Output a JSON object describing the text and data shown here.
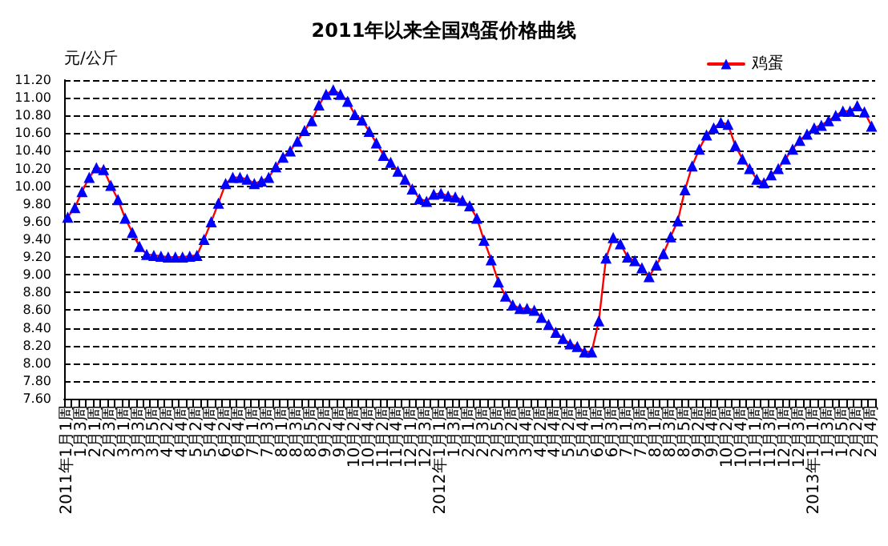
{
  "chart_data": {
    "type": "line",
    "title": "2011年以来全国鸡蛋价格曲线",
    "ylabel": "元/公斤",
    "categories": [
      "2011年1月1周",
      null,
      "1月3周",
      null,
      "2月1周",
      null,
      "2月3周",
      null,
      "3月1周",
      null,
      "3月3周",
      null,
      "3月5周",
      null,
      "4月2周",
      null,
      "4月4周",
      null,
      "5月2周",
      null,
      "5月4周",
      null,
      "6月2周",
      null,
      "6月4周",
      null,
      "7月1周",
      null,
      "7月3周",
      null,
      "8月1周",
      null,
      "8月3周",
      null,
      "8月5周",
      null,
      "9月2周",
      null,
      "9月4周",
      null,
      "10月2周",
      null,
      "10月4周",
      null,
      "11月2周",
      null,
      "11月4周",
      null,
      "12月1周",
      null,
      "12月3周",
      null,
      "2012年1月1周",
      null,
      "1月3周",
      null,
      "2月1周",
      null,
      "2月3周",
      null,
      "2月5周",
      null,
      "3月2周",
      null,
      "3月4周",
      null,
      "4月2周",
      null,
      "4月4周",
      null,
      "5月2周",
      null,
      "5月4周",
      null,
      "6月1周",
      null,
      "6月3周",
      null,
      "7月1周",
      null,
      "7月3周",
      null,
      "8月1周",
      null,
      "8月3周",
      null,
      "8月5周",
      null,
      "9月2周",
      null,
      "9月4周",
      null,
      "10月2周",
      null,
      "10月4周",
      null,
      "11月1周",
      null,
      "11月3周",
      null,
      "12月1周",
      null,
      "12月3周",
      null,
      "2013年1月1周",
      null,
      "1月3周",
      null,
      "1月5周",
      null,
      "2月2周",
      null,
      "2月4周"
    ],
    "series": [
      {
        "name": "鸡蛋",
        "color": "#0000ff",
        "values": [
          9.65,
          9.76,
          9.94,
          10.1,
          10.21,
          10.19,
          10.01,
          9.85,
          9.64,
          9.48,
          9.32,
          9.23,
          9.22,
          9.21,
          9.2,
          9.2,
          9.2,
          9.21,
          9.22,
          9.4,
          9.6,
          9.81,
          10.03,
          10.1,
          10.1,
          10.08,
          10.03,
          10.06,
          10.1,
          10.22,
          10.33,
          10.4,
          10.51,
          10.63,
          10.74,
          10.92,
          11.04,
          11.09,
          11.04,
          10.96,
          10.81,
          10.75,
          10.62,
          10.49,
          10.35,
          10.27,
          10.17,
          10.08,
          9.97,
          9.86,
          9.83,
          9.91,
          9.92,
          9.89,
          9.88,
          9.84,
          9.78,
          9.64,
          9.39,
          9.17,
          8.92,
          8.76,
          8.66,
          8.62,
          8.62,
          8.6,
          8.52,
          8.44,
          8.35,
          8.28,
          8.22,
          8.19,
          8.13,
          8.13,
          8.48,
          9.19,
          9.42,
          9.35,
          9.2,
          9.16,
          9.08,
          8.98,
          9.11,
          9.24,
          9.43,
          9.61,
          9.96,
          10.23,
          10.42,
          10.58,
          10.66,
          10.72,
          10.7,
          10.46,
          10.31,
          10.2,
          10.08,
          10.04,
          10.13,
          10.2,
          10.31,
          10.42,
          10.52,
          10.59,
          10.66,
          10.69,
          10.74,
          10.8,
          10.85,
          10.85,
          10.91,
          10.84,
          10.68
        ]
      }
    ],
    "ylim": [
      7.6,
      11.2
    ],
    "yticks": [
      {
        "value": 7.6,
        "label": "7.60"
      },
      {
        "value": 7.8,
        "label": "7.80"
      },
      {
        "value": 8,
        "label": "8.00"
      },
      {
        "value": 8.2,
        "label": "8.20"
      },
      {
        "value": 8.4,
        "label": "8.40"
      },
      {
        "value": 8.6,
        "label": "8.60"
      },
      {
        "value": 8.8,
        "label": "8.80"
      },
      {
        "value": 9,
        "label": "9.00"
      },
      {
        "value": 9.2,
        "label": "9.20"
      },
      {
        "value": 9.4,
        "label": "9.40"
      },
      {
        "value": 9.6,
        "label": "9.60"
      },
      {
        "value": 9.8,
        "label": "9.80"
      },
      {
        "value": 10,
        "label": "10.00"
      },
      {
        "value": 10.2,
        "label": "10.20"
      },
      {
        "value": 10.4,
        "label": "10.40"
      },
      {
        "value": 10.6,
        "label": "10.60"
      },
      {
        "value": 10.8,
        "label": "10.80"
      },
      {
        "value": 11,
        "label": "11.00"
      },
      {
        "value": 11.2,
        "label": "11.20"
      }
    ],
    "grid": "y",
    "legend": "top right",
    "marker": "triangle",
    "line_style": "solid"
  }
}
